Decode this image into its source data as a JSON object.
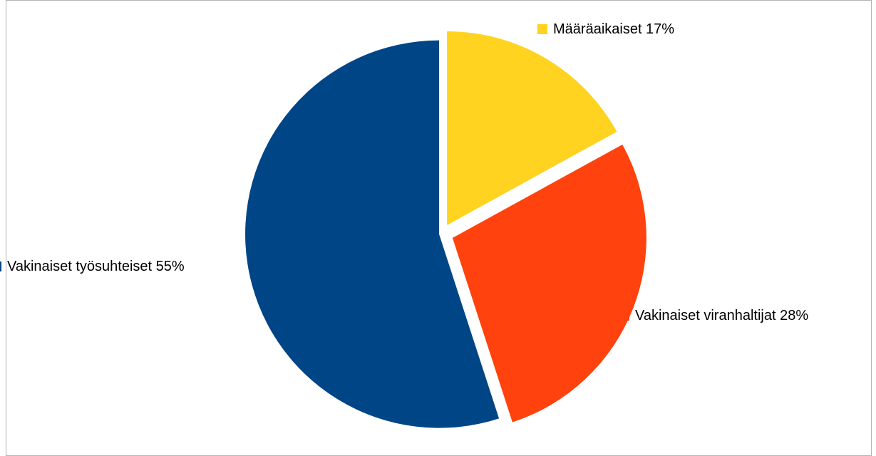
{
  "chart_data": {
    "type": "pie",
    "title": "",
    "slices": [
      {
        "label": "Määräaikaiset",
        "value": 17,
        "percent_label": "17%",
        "color": "#FFD320"
      },
      {
        "label": "Vakinaiset viranhaltijat",
        "value": 28,
        "percent_label": "28%",
        "color": "#FF420E"
      },
      {
        "label": "Vakinaiset työsuhteiset",
        "value": 55,
        "percent_label": "55%",
        "color": "#004586"
      }
    ],
    "label_format": "name + percent, with legend key square",
    "exploded": true
  }
}
